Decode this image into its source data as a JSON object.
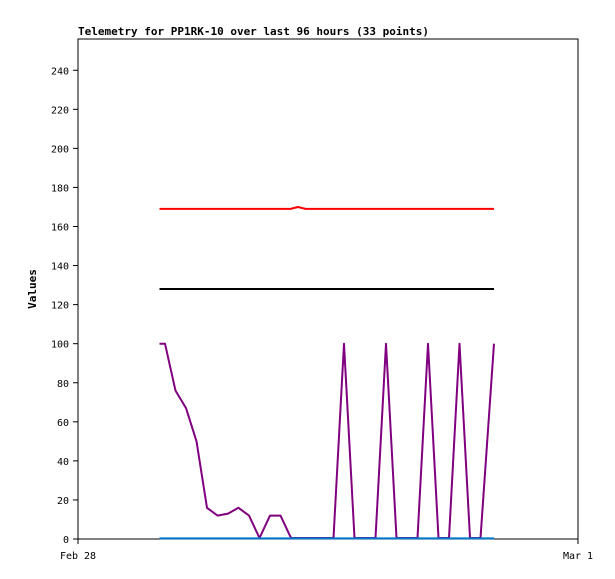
{
  "chart_data": {
    "type": "line",
    "title": "Telemetry for PP1RK-10 over last 96 hours (33 points)",
    "xlabel": "",
    "ylabel": "Values",
    "x_tick_labels": [
      "Feb 28",
      "Mar 1"
    ],
    "ylim": [
      0,
      256
    ],
    "y_ticks": [
      0,
      20,
      40,
      60,
      80,
      100,
      120,
      140,
      160,
      180,
      200,
      220,
      240
    ],
    "xlim": [
      0,
      1
    ],
    "grid": false,
    "legend": "none",
    "series": [
      {
        "color": "#ff0000",
        "x": [
          0.163,
          0.425,
          0.44,
          0.455,
          0.832
        ],
        "y": [
          169,
          169,
          170,
          169,
          169
        ]
      },
      {
        "color": "#000000",
        "x": [
          0.163,
          0.832
        ],
        "y": [
          128,
          128
        ]
      },
      {
        "color": "#800080",
        "x": [
          0.163,
          0.174,
          0.195,
          0.216,
          0.237,
          0.258,
          0.279,
          0.3,
          0.321,
          0.342,
          0.363,
          0.384,
          0.405,
          0.426,
          0.447,
          0.468,
          0.489,
          0.511,
          0.532,
          0.553,
          0.574,
          0.595,
          0.616,
          0.637,
          0.658,
          0.679,
          0.7,
          0.721,
          0.742,
          0.763,
          0.784,
          0.805,
          0.832
        ],
        "y": [
          100,
          100,
          76,
          67,
          50,
          16,
          12,
          13,
          16,
          12,
          0.5,
          12,
          12,
          0.5,
          0.5,
          0.5,
          0.5,
          0.5,
          100,
          0.5,
          0.5,
          0.5,
          100,
          0.5,
          0.5,
          0.5,
          100,
          0.5,
          0.5,
          100,
          0.5,
          0.5,
          100
        ]
      },
      {
        "color": "#0077cc",
        "x": [
          0.163,
          0.832
        ],
        "y": [
          0.3,
          0.3
        ]
      }
    ]
  }
}
